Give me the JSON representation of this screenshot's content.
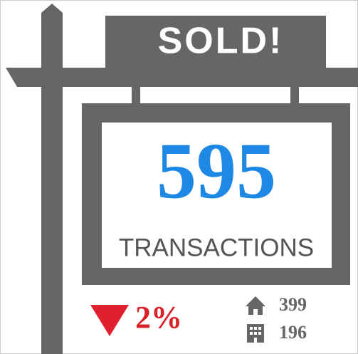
{
  "sign": {
    "title": "SOLD!"
  },
  "kpi": {
    "value": "595",
    "label": "TRANSACTIONS"
  },
  "change": {
    "value": "2%"
  },
  "breakdown": {
    "houses": "399",
    "condos": "196"
  }
}
